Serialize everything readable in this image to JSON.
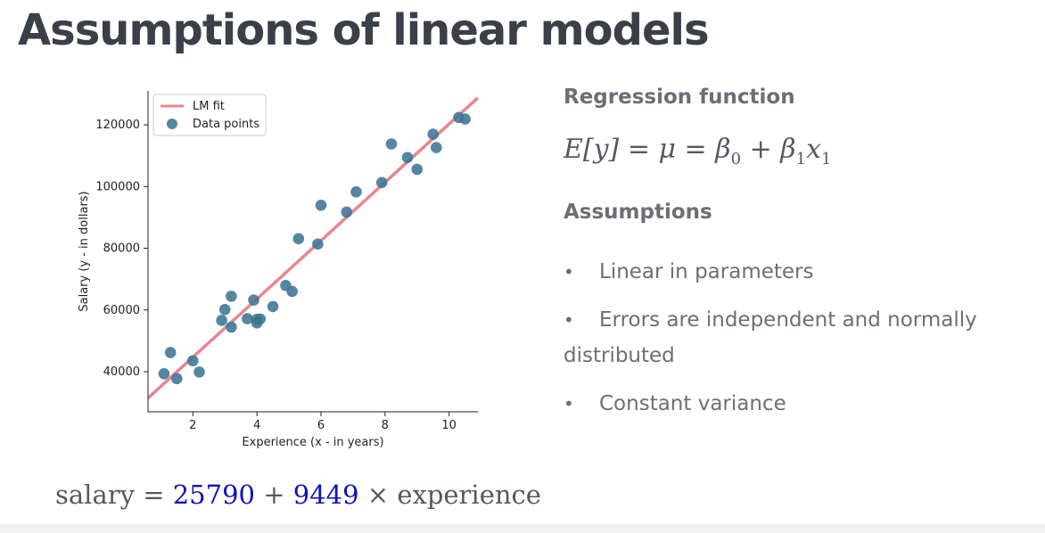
{
  "slide": {
    "title": "Assumptions of linear models"
  },
  "right_panel": {
    "regression_heading": "Regression function",
    "formula": {
      "lhs": "E[y]",
      "eq1": "=",
      "mu": "μ",
      "eq2": "=",
      "b0": "β",
      "b0_sub": "0",
      "plus": "+",
      "b1": "β",
      "b1_sub": "1",
      "x": "x",
      "x_sub": "1"
    },
    "assumptions_heading": "Assumptions",
    "assumptions": [
      "Linear in parameters",
      "Errors are independent and normally distributed",
      "Constant variance"
    ]
  },
  "bottom_equation": {
    "lhs": "salary",
    "eq": "=",
    "intercept": "25790",
    "plus": "+",
    "slope": "9449",
    "times": "×",
    "var": "experience"
  },
  "chart_data": {
    "type": "scatter",
    "xlabel": "Experience (x - in years)",
    "ylabel": "Salary (y - in dollars)",
    "xlim": [
      0.6,
      10.9
    ],
    "ylim": [
      27000,
      131000
    ],
    "xticks": [
      2,
      4,
      6,
      8,
      10
    ],
    "yticks": [
      40000,
      60000,
      80000,
      100000,
      120000
    ],
    "legend_position": "top-left",
    "series": [
      {
        "name": "LM fit",
        "kind": "line",
        "color": "#e8868f",
        "intercept": 25790,
        "slope": 9449
      },
      {
        "name": "Data points",
        "kind": "scatter",
        "color": "#3c7594",
        "x": [
          1.1,
          1.3,
          1.5,
          2.0,
          2.2,
          2.9,
          3.0,
          3.2,
          3.2,
          3.7,
          3.9,
          4.0,
          4.0,
          4.1,
          4.5,
          4.9,
          5.1,
          5.3,
          5.9,
          6.0,
          6.8,
          7.1,
          7.9,
          8.2,
          8.7,
          9.0,
          9.5,
          9.6,
          10.3,
          10.5
        ],
        "y": [
          39343,
          46205,
          37731,
          43525,
          39891,
          56642,
          60150,
          54445,
          64445,
          57189,
          63218,
          55794,
          56957,
          57081,
          61111,
          67938,
          66029,
          83088,
          81363,
          93940,
          91738,
          98273,
          101302,
          113812,
          109431,
          105582,
          116969,
          112635,
          122391,
          121872
        ]
      }
    ]
  }
}
